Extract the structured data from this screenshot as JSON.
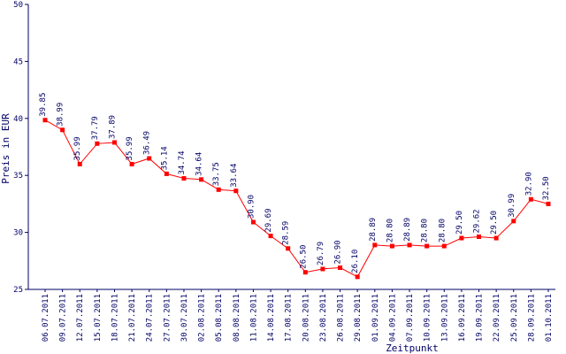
{
  "chart_data": {
    "type": "line",
    "title": "",
    "xlabel": "Zeitpunkt",
    "ylabel": "Preis in EUR",
    "ylim": [
      25,
      50
    ],
    "yticks": [
      25,
      30,
      35,
      40,
      45,
      50
    ],
    "grid": false,
    "legend": "none",
    "colors": {
      "line": "#ff0000",
      "marker": "#ff0000",
      "axis": "#000066",
      "text": "#000066"
    },
    "series": [
      {
        "x": [
          "06.07.2011",
          "09.07.2011",
          "12.07.2011",
          "15.07.2011",
          "18.07.2011",
          "21.07.2011",
          "24.07.2011",
          "27.07.2011",
          "30.07.2011",
          "02.08.2011",
          "05.08.2011",
          "08.08.2011",
          "11.08.2011",
          "14.08.2011",
          "17.08.2011",
          "20.08.2011",
          "23.08.2011",
          "26.08.2011",
          "29.08.2011",
          "01.09.2011",
          "04.09.2011",
          "07.09.2011",
          "10.09.2011",
          "13.09.2011",
          "16.09.2011",
          "19.09.2011",
          "22.09.2011",
          "25.09.2011",
          "28.09.2011",
          "01.10.2011"
        ],
        "values": [
          39.85,
          38.99,
          35.99,
          37.79,
          37.89,
          35.99,
          36.49,
          35.14,
          34.74,
          34.64,
          33.75,
          33.64,
          30.9,
          29.69,
          28.59,
          26.5,
          26.79,
          26.9,
          26.1,
          28.89,
          28.8,
          28.89,
          28.8,
          28.8,
          29.5,
          29.62,
          29.5,
          30.99,
          32.9,
          32.5
        ],
        "labels": [
          "39.85",
          "38.99",
          "35.99",
          "37.79",
          "37.89",
          "35.99",
          "36.49",
          "35.14",
          "34.74",
          "34.64",
          "33.75",
          "33.64",
          "30.90",
          "29.69",
          "28.59",
          "26.50",
          "26.79",
          "26.90",
          "26.10",
          "28.89",
          "28.80",
          "28.89",
          "28.80",
          "28.80",
          "29.50",
          "29.62",
          "29.50",
          "30.99",
          "32.90",
          "32.50"
        ]
      }
    ]
  }
}
